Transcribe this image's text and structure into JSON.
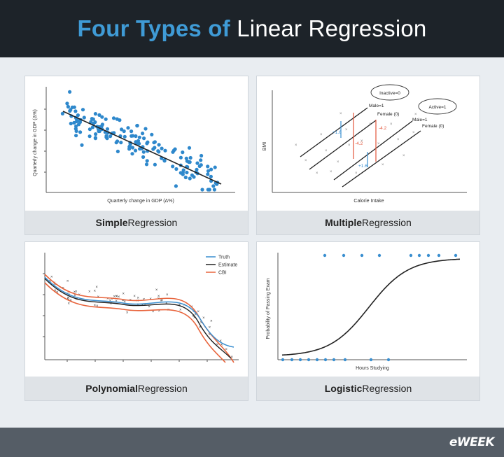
{
  "header": {
    "title_accent": "Four Types of",
    "title_plain": "Linear Regression"
  },
  "footer": {
    "logo": "eWEEK"
  },
  "panels": [
    {
      "caption_strong": "Simple",
      "caption_rest": " Regression",
      "ylabel": "Quarterly change in GDP (Δ%)",
      "xlabel": "Quarterly change in GDP (Δ%)"
    },
    {
      "caption_strong": "Multiple",
      "caption_rest": " Regression",
      "ylabel": "BMI",
      "xlabel": "Calorie Intake",
      "labels": {
        "inactive": "Inactive=0",
        "active": "Active=1",
        "male_a": "Male=1",
        "female_a": "Female (0)",
        "male_b": "Male=1",
        "female_b": "Female (0)",
        "d1": "+1.6",
        "d2": "-4.2",
        "d3": "-4.2",
        "d4": "+1.6"
      }
    },
    {
      "caption_strong": "Polynomial",
      "caption_rest": " Regression",
      "legend": [
        {
          "name": "Truth",
          "color": "#3a8fd0"
        },
        {
          "name": "Estimate",
          "color": "#222222"
        },
        {
          "name": "CBI",
          "color": "#e8643c"
        }
      ]
    },
    {
      "caption_strong": "Logistic",
      "caption_rest": " Regression",
      "ylabel": "Probability of Passing Exam",
      "xlabel": "Hours Studying"
    }
  ],
  "colors": {
    "accent": "#3f9bd6",
    "header_bg": "#1d2329",
    "footer_bg": "#555d66",
    "point_blue": "#2e88cc",
    "red": "#e2553b"
  }
}
